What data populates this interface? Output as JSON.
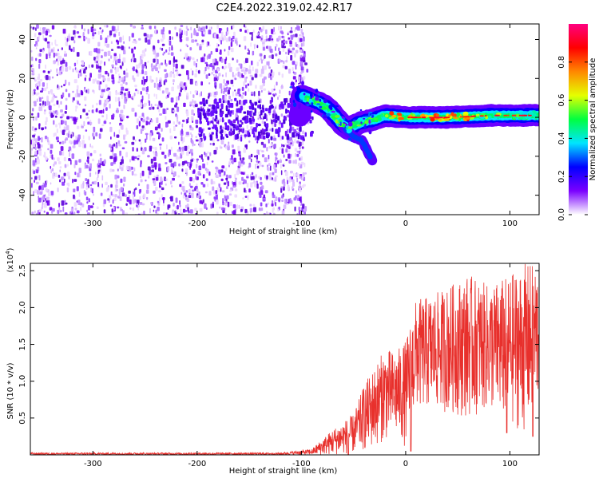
{
  "title": "C2E4.2022.319.02.42.R17",
  "colors": {
    "snr_line": "#e8302c",
    "frame": "#000000"
  },
  "chart_data": [
    {
      "type": "heatmap",
      "name": "spectrogram",
      "xlabel": "Height of straight line (km)",
      "ylabel": "Frequency (Hz)",
      "xlim": [
        -360,
        128
      ],
      "ylim": [
        -50,
        48
      ],
      "x_ticks": [
        -300,
        -200,
        -100,
        0,
        100
      ],
      "y_ticks": [
        -40,
        -20,
        0,
        20,
        40
      ],
      "colorbar": {
        "label": "Normalized spectral amplitude",
        "range": [
          0,
          1
        ],
        "ticks": [
          "0.0",
          "0.2",
          "0.4",
          "0.6",
          "0.8"
        ],
        "tick_values": [
          0.0,
          0.2,
          0.4,
          0.6,
          0.8
        ],
        "stops": [
          "#ffffff",
          "#7a00ff",
          "#0000ff",
          "#00e5ff",
          "#00ff40",
          "#e5ff00",
          "#ff8800",
          "#ff0000",
          "#ff0080"
        ]
      },
      "noise_region_x": [
        -360,
        -100
      ],
      "ridge": [
        {
          "x": -100,
          "y": 11
        },
        {
          "x": -85,
          "y": 8
        },
        {
          "x": -75,
          "y": 5
        },
        {
          "x": -62,
          "y": -3
        },
        {
          "x": -55,
          "y": -6
        },
        {
          "x": -45,
          "y": -3
        },
        {
          "x": -38,
          "y": -2
        },
        {
          "x": -30,
          "y": -1
        },
        {
          "x": -20,
          "y": 1
        },
        {
          "x": 0,
          "y": 0
        },
        {
          "x": 40,
          "y": 0
        },
        {
          "x": 80,
          "y": 1
        },
        {
          "x": 110,
          "y": 1
        },
        {
          "x": 128,
          "y": 1
        }
      ],
      "branch": [
        {
          "x": -60,
          "y": -5
        },
        {
          "x": -50,
          "y": -10
        },
        {
          "x": -42,
          "y": -12
        },
        {
          "x": -32,
          "y": -22
        }
      ]
    },
    {
      "type": "line",
      "name": "snr",
      "xlabel": "Height of straight line (km)",
      "ylabel": "SNR (10 * v/v)",
      "y_scale_note": "(x10",
      "y_scale_exp": "4",
      "y_scale_close": ")",
      "xlim": [
        -360,
        128
      ],
      "ylim": [
        0,
        2.6
      ],
      "x_ticks": [
        -300,
        -200,
        -100,
        0,
        100
      ],
      "y_ticks": [
        0.5,
        1.0,
        1.5,
        2.0,
        2.5
      ],
      "y_tick_labels": [
        "0.5",
        "1.0",
        "1.5",
        "2.0",
        "2.5"
      ],
      "envelope": [
        {
          "x": -360,
          "min": 0.0,
          "max": 0.03
        },
        {
          "x": -120,
          "min": 0.0,
          "max": 0.03
        },
        {
          "x": -90,
          "min": 0.0,
          "max": 0.08
        },
        {
          "x": -70,
          "min": 0.0,
          "max": 0.35
        },
        {
          "x": -50,
          "min": 0.02,
          "max": 0.55
        },
        {
          "x": -40,
          "min": 0.05,
          "max": 0.95
        },
        {
          "x": -30,
          "min": 0.1,
          "max": 1.2
        },
        {
          "x": -20,
          "min": 0.2,
          "max": 1.45
        },
        {
          "x": -10,
          "min": 0.25,
          "max": 1.4
        },
        {
          "x": 0,
          "min": 0.1,
          "max": 1.55
        },
        {
          "x": 10,
          "min": 0.6,
          "max": 2.1
        },
        {
          "x": 30,
          "min": 0.6,
          "max": 2.2
        },
        {
          "x": 60,
          "min": 0.5,
          "max": 2.45
        },
        {
          "x": 80,
          "min": 0.6,
          "max": 2.3
        },
        {
          "x": 100,
          "min": 0.4,
          "max": 2.45
        },
        {
          "x": 115,
          "min": 0.3,
          "max": 2.6
        },
        {
          "x": 128,
          "min": 0.7,
          "max": 2.6
        }
      ],
      "notable_dips": [
        {
          "x": -55,
          "y": 0.0
        },
        {
          "x": 5,
          "y": 0.05
        },
        {
          "x": 97,
          "y": 0.3
        },
        {
          "x": 122,
          "y": 0.25
        }
      ]
    }
  ]
}
